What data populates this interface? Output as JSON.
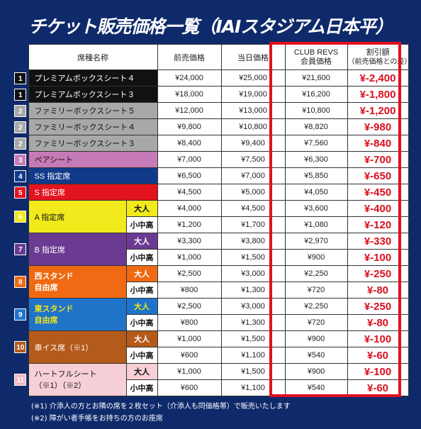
{
  "title": "チケット販売価格一覧（IAIスタジアム日本平）",
  "headers": {
    "seat_name": "席種名称",
    "advance": "前売価格",
    "same_day": "当日価格",
    "member_1": "CLUB REVS",
    "member_2": "会員価格",
    "discount_1": "割引額",
    "discount_2": "（前売価格との差）"
  },
  "colors": {
    "highlight": "#e01020",
    "discount_text": "#d8101f",
    "background": "#0f2a6b"
  },
  "rows": [
    {
      "rank": "1",
      "name": "プレミアムボックスシート４",
      "sub": "",
      "advance": "¥24,000",
      "same_day": "¥25,000",
      "member": "¥21,600",
      "discount": "¥-2,400"
    },
    {
      "rank": "1",
      "name": "プレミアムボックスシート３",
      "sub": "",
      "advance": "¥18,000",
      "same_day": "¥19,000",
      "member": "¥16,200",
      "discount": "¥-1,800"
    },
    {
      "rank": "2",
      "name": "ファミリーボックスシート５",
      "sub": "",
      "advance": "¥12,000",
      "same_day": "¥13,000",
      "member": "¥10,800",
      "discount": "¥-1,200"
    },
    {
      "rank": "2",
      "name": "ファミリーボックスシート４",
      "sub": "",
      "advance": "¥9,800",
      "same_day": "¥10,800",
      "member": "¥8,820",
      "discount": "¥-980"
    },
    {
      "rank": "2",
      "name": "ファミリーボックスシート３",
      "sub": "",
      "advance": "¥8,400",
      "same_day": "¥9,400",
      "member": "¥7,560",
      "discount": "¥-840"
    },
    {
      "rank": "3",
      "name": "ペアシート",
      "sub": "",
      "advance": "¥7,000",
      "same_day": "¥7,500",
      "member": "¥6,300",
      "discount": "¥-700"
    },
    {
      "rank": "4",
      "name": "SS 指定席",
      "sub": "",
      "advance": "¥6,500",
      "same_day": "¥7,000",
      "member": "¥5,850",
      "discount": "¥-650"
    },
    {
      "rank": "5",
      "name": "S 指定席",
      "sub": "",
      "advance": "¥4,500",
      "same_day": "¥5,000",
      "member": "¥4,050",
      "discount": "¥-450"
    },
    {
      "rank": "6",
      "name": "A 指定席",
      "sub": "大人",
      "advance": "¥4,000",
      "same_day": "¥4,500",
      "member": "¥3,600",
      "discount": "¥-400"
    },
    {
      "rank": "",
      "name": "",
      "sub": "小中高",
      "advance": "¥1,200",
      "same_day": "¥1,700",
      "member": "¥1,080",
      "discount": "¥-120"
    },
    {
      "rank": "7",
      "name": "B 指定席",
      "sub": "大人",
      "advance": "¥3,300",
      "same_day": "¥3,800",
      "member": "¥2,970",
      "discount": "¥-330"
    },
    {
      "rank": "",
      "name": "",
      "sub": "小中高",
      "advance": "¥1,000",
      "same_day": "¥1,500",
      "member": "¥900",
      "discount": "¥-100"
    },
    {
      "rank": "8",
      "name": "西スタンド",
      "name2": "自由席",
      "sub": "大人",
      "advance": "¥2,500",
      "same_day": "¥3,000",
      "member": "¥2,250",
      "discount": "¥-250"
    },
    {
      "rank": "",
      "name": "",
      "sub": "小中高",
      "advance": "¥800",
      "same_day": "¥1,300",
      "member": "¥720",
      "discount": "¥-80"
    },
    {
      "rank": "9",
      "name": "東スタンド",
      "name2": "自由席",
      "sub": "大人",
      "advance": "¥2,500",
      "same_day": "¥3,000",
      "member": "¥2,250",
      "discount": "¥-250"
    },
    {
      "rank": "",
      "name": "",
      "sub": "小中高",
      "advance": "¥800",
      "same_day": "¥1,300",
      "member": "¥720",
      "discount": "¥-80"
    },
    {
      "rank": "10",
      "name": "車イス席（※1）",
      "sub": "大人",
      "advance": "¥1,000",
      "same_day": "¥1,500",
      "member": "¥900",
      "discount": "¥-100"
    },
    {
      "rank": "",
      "name": "",
      "sub": "小中高",
      "advance": "¥600",
      "same_day": "¥1,100",
      "member": "¥540",
      "discount": "¥-60"
    },
    {
      "rank": "11",
      "name": "ハートフルシート",
      "name2": "（※1）（※2）",
      "sub": "大人",
      "advance": "¥1,000",
      "same_day": "¥1,500",
      "member": "¥900",
      "discount": "¥-100"
    },
    {
      "rank": "",
      "name": "",
      "sub": "小中高",
      "advance": "¥600",
      "same_day": "¥1,100",
      "member": "¥540",
      "discount": "¥-60"
    }
  ],
  "notes": [
    "(※1) 介添人の方とお隣の席を２枚セット（介添人も同価格帯）で販売いたします",
    "(※2) 障がい者手帳をお持ちの方のお座席"
  ]
}
